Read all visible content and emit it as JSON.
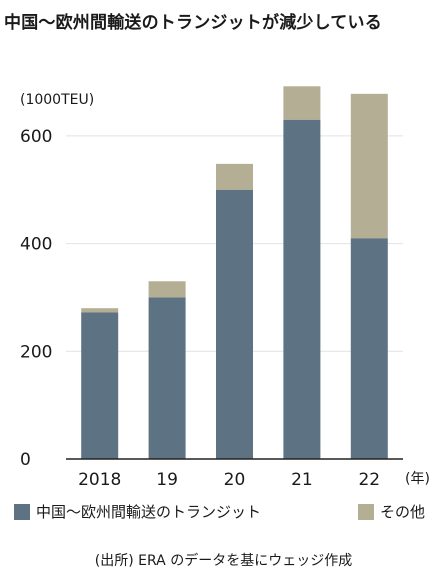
{
  "title": "中国～欧州間輸送のトランジットが減少している",
  "unit_label": "(1000TEU)",
  "year_suffix": "(年)",
  "source": "(出所) ERA のデータを基にウェッジ作成",
  "colors": {
    "china_europe": "#5d7283",
    "other": "#b3ae94",
    "grid": "#e2e2e2",
    "axis": "#222222"
  },
  "chart_data": {
    "type": "bar",
    "stacked": true,
    "title": "中国～欧州間輸送のトランジットが減少している",
    "ylabel": "(1000TEU)",
    "xlabel": "(年)",
    "categories": [
      "2018",
      "19",
      "20",
      "21",
      "22"
    ],
    "series": [
      {
        "name": "中国～欧州間輸送のトランジット",
        "values": [
          272,
          300,
          500,
          630,
          410
        ]
      },
      {
        "name": "その他",
        "values": [
          8,
          30,
          48,
          62,
          268
        ]
      }
    ],
    "ylim": [
      0,
      700
    ],
    "yticks": [
      0,
      200,
      400,
      600
    ],
    "grid": true,
    "legend_position": "bottom"
  }
}
